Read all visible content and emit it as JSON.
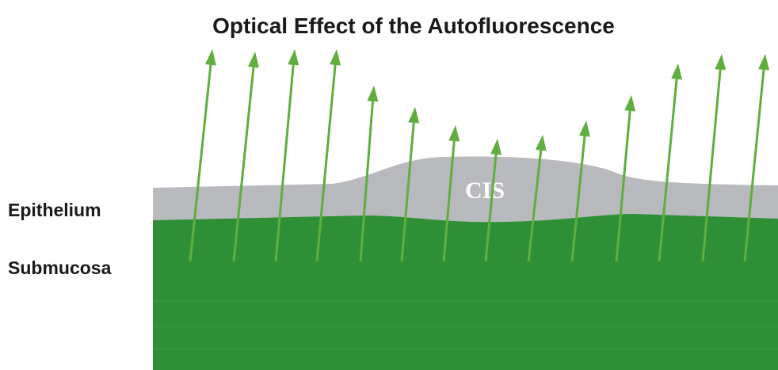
{
  "title": "Optical Effect of the Autofluorescence",
  "labels": {
    "epithelium": "Epithelium",
    "submucosa": "Submucosa",
    "lesion": "CIS"
  }
}
